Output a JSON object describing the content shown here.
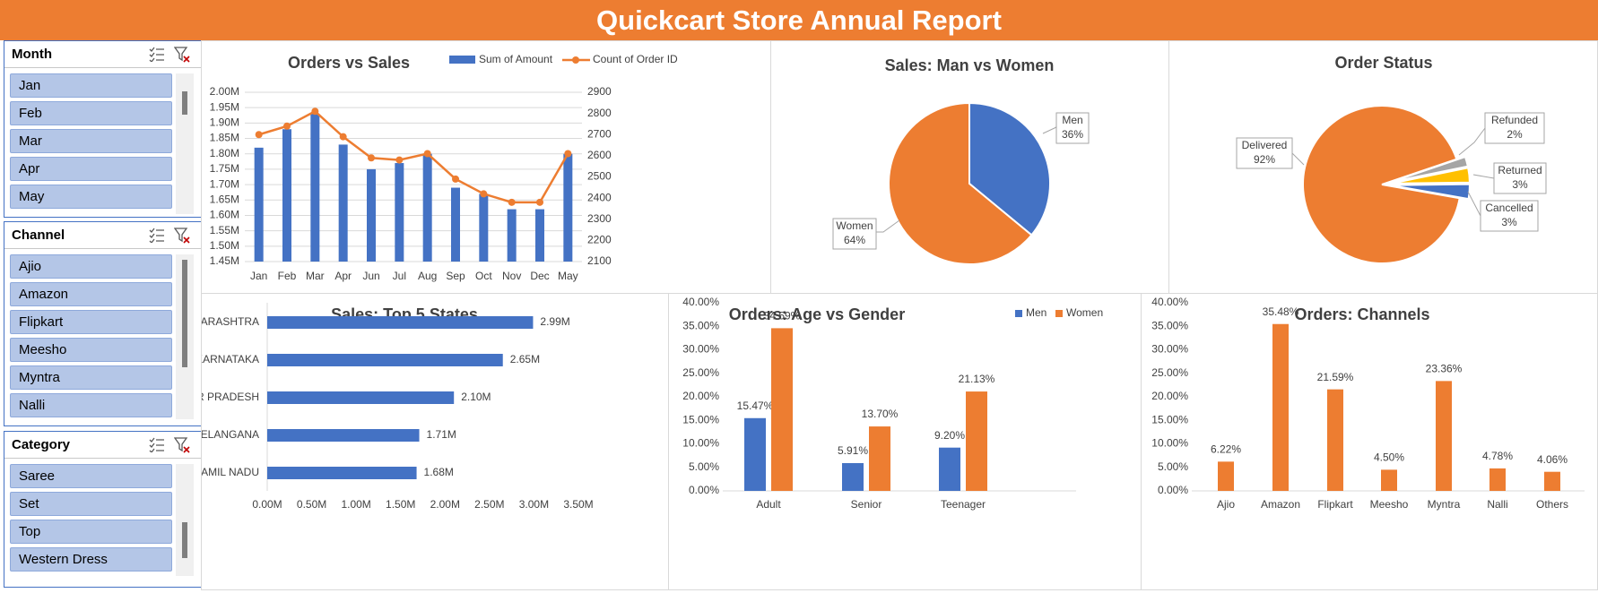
{
  "header": {
    "title": "Quickcart Store Annual Report"
  },
  "slicers": [
    {
      "title": "Month",
      "items": [
        "Jan",
        "Feb",
        "Mar",
        "Apr",
        "May"
      ]
    },
    {
      "title": "Channel",
      "items": [
        "Ajio",
        "Amazon",
        "Flipkart",
        "Meesho",
        "Myntra",
        "Nalli"
      ]
    },
    {
      "title": "Category",
      "items": [
        "Saree",
        "Set",
        "Top",
        "Western Dress"
      ]
    }
  ],
  "icons": {
    "multi_select": "multi-select-icon",
    "clear_filter": "clear-filter-icon"
  },
  "colors": {
    "brand": "#ed7d31",
    "blue": "#4472c4",
    "orange": "#ed7d31",
    "gray": "#a5a5a5",
    "yellow": "#ffc000",
    "slicer_item": "#b4c6e7"
  },
  "chart_data": [
    {
      "id": "orders-vs-sales",
      "type": "bar",
      "title": "Orders vs Sales",
      "categories": [
        "Jan",
        "Feb",
        "Mar",
        "Apr",
        "Jun",
        "Jul",
        "Aug",
        "Sep",
        "Oct",
        "Nov",
        "Dec",
        "May"
      ],
      "series": [
        {
          "name": "Sum of Amount",
          "type": "bar",
          "axis": "left",
          "color": "#4472c4",
          "values": [
            1.82,
            1.88,
            1.93,
            1.83,
            1.75,
            1.77,
            1.8,
            1.69,
            1.67,
            1.62,
            1.62,
            1.8
          ]
        },
        {
          "name": "Count of Order ID",
          "type": "line",
          "axis": "right",
          "color": "#ed7d31",
          "values": [
            2700,
            2740,
            2810,
            2690,
            2590,
            2580,
            2610,
            2490,
            2420,
            2380,
            2380,
            2610
          ]
        }
      ],
      "y_left": {
        "min": 1.45,
        "max": 2.0,
        "ticks": [
          "1.45M",
          "1.50M",
          "1.55M",
          "1.60M",
          "1.65M",
          "1.70M",
          "1.75M",
          "1.80M",
          "1.85M",
          "1.90M",
          "1.95M",
          "2.00M"
        ]
      },
      "y_right": {
        "min": 2100,
        "max": 2900,
        "ticks": [
          "2100",
          "2200",
          "2300",
          "2400",
          "2500",
          "2600",
          "2700",
          "2800",
          "2900"
        ]
      },
      "grid": true,
      "legend": "top"
    },
    {
      "id": "sales-man-vs-women",
      "type": "pie",
      "title": "Sales: Man vs Women",
      "slices": [
        {
          "name": "Men",
          "value": 36,
          "label": "36%",
          "color": "#4472c4"
        },
        {
          "name": "Women",
          "value": 64,
          "label": "64%",
          "color": "#ed7d31"
        }
      ]
    },
    {
      "id": "order-status",
      "type": "pie",
      "title": "Order Status",
      "slices": [
        {
          "name": "Delivered",
          "value": 92,
          "label": "92%",
          "color": "#ed7d31"
        },
        {
          "name": "Refunded",
          "value": 2,
          "label": "2%",
          "color": "#a5a5a5"
        },
        {
          "name": "Returned",
          "value": 3,
          "label": "3%",
          "color": "#ffc000"
        },
        {
          "name": "Cancelled",
          "value": 3,
          "label": "3%",
          "color": "#4472c4"
        }
      ]
    },
    {
      "id": "sales-top5-states",
      "type": "bar",
      "orientation": "horizontal",
      "title": "Sales: Top 5 States",
      "categories": [
        "MAHARASHTRA",
        "KARNATAKA",
        "UTTAR PRADESH",
        "TELANGANA",
        "TAMIL NADU"
      ],
      "values": [
        2.99,
        2.65,
        2.1,
        1.71,
        1.68
      ],
      "data_labels": [
        "2.99M",
        "2.65M",
        "2.10M",
        "1.71M",
        "1.68M"
      ],
      "color": "#4472c4",
      "x_axis": {
        "min": 0,
        "max": 3.5,
        "ticks": [
          "0.00M",
          "0.50M",
          "1.00M",
          "1.50M",
          "2.00M",
          "2.50M",
          "3.00M",
          "3.50M"
        ]
      },
      "grid": false
    },
    {
      "id": "orders-age-vs-gender",
      "type": "bar",
      "title": "Orders: Age vs Gender",
      "categories": [
        "Adult",
        "Senior",
        "Teenager"
      ],
      "series": [
        {
          "name": "Men",
          "color": "#4472c4",
          "values": [
            15.47,
            5.91,
            9.2
          ],
          "labels": [
            "15.47%",
            "5.91%",
            "9.20%"
          ]
        },
        {
          "name": "Women",
          "color": "#ed7d31",
          "values": [
            34.59,
            13.7,
            21.13
          ],
          "labels": [
            "34.59%",
            "13.70%",
            "21.13%"
          ]
        }
      ],
      "y_axis": {
        "min": 0,
        "max": 40,
        "ticks": [
          "0.00%",
          "5.00%",
          "10.00%",
          "15.00%",
          "20.00%",
          "25.00%",
          "30.00%",
          "35.00%",
          "40.00%"
        ]
      },
      "legend": "top-right",
      "grid": false
    },
    {
      "id": "orders-channels",
      "type": "bar",
      "title": "Orders: Channels",
      "categories": [
        "Ajio",
        "Amazon",
        "Flipkart",
        "Meesho",
        "Myntra",
        "Nalli",
        "Others"
      ],
      "values": [
        6.22,
        35.48,
        21.59,
        4.5,
        23.36,
        4.78,
        4.06
      ],
      "data_labels": [
        "6.22%",
        "35.48%",
        "21.59%",
        "4.50%",
        "23.36%",
        "4.78%",
        "4.06%"
      ],
      "color": "#ed7d31",
      "y_axis": {
        "min": 0,
        "max": 40,
        "ticks": [
          "0.00%",
          "5.00%",
          "10.00%",
          "15.00%",
          "20.00%",
          "25.00%",
          "30.00%",
          "35.00%",
          "40.00%"
        ]
      },
      "grid": false
    }
  ]
}
